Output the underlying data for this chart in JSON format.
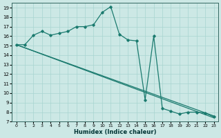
{
  "xlabel": "Humidex (Indice chaleur)",
  "background_color": "#cce8e5",
  "grid_color": "#a8d4d0",
  "line_color": "#1a7a6e",
  "xlim": [
    -0.5,
    23.5
  ],
  "ylim": [
    7,
    19.5
  ],
  "yticks": [
    7,
    8,
    9,
    10,
    11,
    12,
    13,
    14,
    15,
    16,
    17,
    18,
    19
  ],
  "xticks": [
    0,
    1,
    2,
    3,
    4,
    5,
    6,
    7,
    8,
    9,
    10,
    11,
    12,
    13,
    14,
    15,
    16,
    17,
    18,
    19,
    20,
    21,
    22,
    23
  ],
  "curve_x": [
    0,
    1,
    2,
    3,
    4,
    5,
    6,
    7,
    8,
    9,
    10,
    11,
    12,
    13,
    14,
    15,
    16,
    17,
    18,
    19,
    20,
    21,
    22,
    23
  ],
  "curve_y": [
    15.1,
    15.1,
    16.1,
    16.5,
    16.1,
    16.3,
    16.5,
    17.0,
    17.0,
    17.2,
    18.5,
    19.1,
    16.2,
    15.6,
    15.5,
    9.3,
    16.0,
    8.4,
    8.1,
    7.8,
    8.0,
    8.0,
    7.9,
    7.5
  ],
  "line1_x": [
    0,
    23
  ],
  "line1_y": [
    15.1,
    7.6
  ],
  "line2_x": [
    0,
    23
  ],
  "line2_y": [
    15.1,
    7.4
  ],
  "marker": "D",
  "marker_size": 1.8,
  "lw": 0.9
}
